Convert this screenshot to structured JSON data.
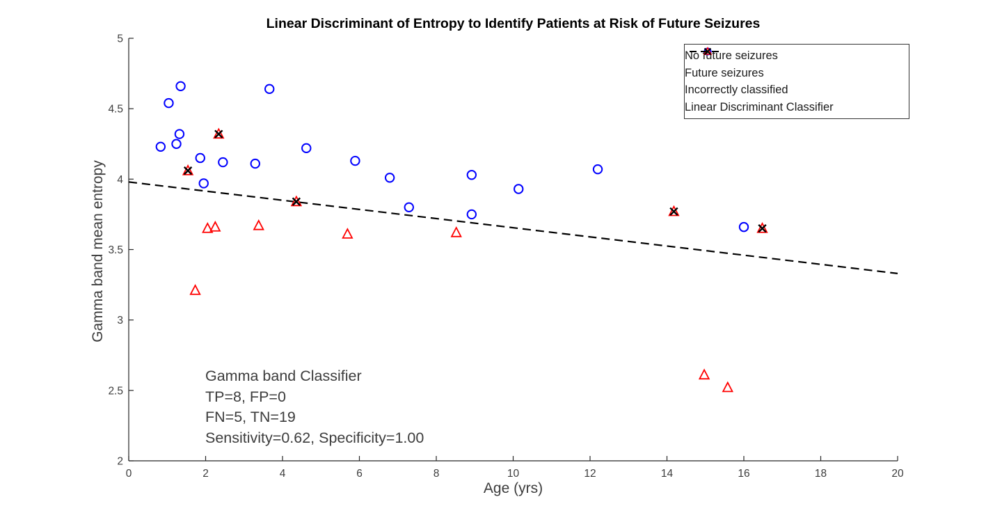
{
  "figure": {
    "background": "#ffffff"
  },
  "chart_data": {
    "type": "scatter",
    "title": "Linear Discriminant of Entropy to Identify Patients at Risk of Future Seizures",
    "xlabel": "Age (yrs)",
    "ylabel": "Gamma band mean entropy",
    "xlim": [
      0,
      20
    ],
    "ylim": [
      2,
      5
    ],
    "xticks": {
      "values": [
        0,
        2,
        4,
        6,
        8,
        10,
        12,
        14,
        16,
        18,
        20
      ],
      "labels": [
        "0",
        "2",
        "4",
        "6",
        "8",
        "10",
        "12",
        "14",
        "16",
        "18",
        "20"
      ]
    },
    "yticks": {
      "values": [
        2,
        2.5,
        3,
        3.5,
        4,
        4.5,
        5
      ],
      "labels": [
        "2",
        "2.5",
        "3",
        "3.5",
        "4",
        "4.5",
        "5"
      ]
    },
    "grid": false,
    "legend": {
      "position": "top-right",
      "border": true
    },
    "series": [
      {
        "name": "No future seizures",
        "marker": "circle",
        "color": "#0000ff",
        "points": [
          [
            0.83,
            4.23
          ],
          [
            1.04,
            4.54
          ],
          [
            1.24,
            4.25
          ],
          [
            1.32,
            4.32
          ],
          [
            1.35,
            4.66
          ],
          [
            1.86,
            4.15
          ],
          [
            1.95,
            3.97
          ],
          [
            2.45,
            4.12
          ],
          [
            3.29,
            4.11
          ],
          [
            3.66,
            4.64
          ],
          [
            4.62,
            4.22
          ],
          [
            5.89,
            4.13
          ],
          [
            6.79,
            4.01
          ],
          [
            7.29,
            3.8
          ],
          [
            8.92,
            4.03
          ],
          [
            8.92,
            3.75
          ],
          [
            10.14,
            3.93
          ],
          [
            12.2,
            4.07
          ],
          [
            16.0,
            3.66
          ]
        ]
      },
      {
        "name": "Future seizures",
        "marker": "triangle",
        "color": "#ff0000",
        "points": [
          [
            1.54,
            4.06
          ],
          [
            1.73,
            3.21
          ],
          [
            2.05,
            3.65
          ],
          [
            2.25,
            3.66
          ],
          [
            2.34,
            4.32
          ],
          [
            3.38,
            3.67
          ],
          [
            4.36,
            3.84
          ],
          [
            5.69,
            3.61
          ],
          [
            8.52,
            3.62
          ],
          [
            14.18,
            3.77
          ],
          [
            14.97,
            2.61
          ],
          [
            15.58,
            2.52
          ],
          [
            16.48,
            3.65
          ]
        ]
      },
      {
        "name": "Incorrectly classified",
        "marker": "x",
        "color": "#000000",
        "points": [
          [
            1.54,
            4.06
          ],
          [
            2.34,
            4.32
          ],
          [
            4.36,
            3.84
          ],
          [
            14.18,
            3.77
          ],
          [
            16.48,
            3.65
          ]
        ]
      },
      {
        "name": "Linear Discriminant Classifier",
        "marker": "dashed-line",
        "color": "#000000",
        "points": [
          [
            0,
            3.98
          ],
          [
            20,
            3.33
          ]
        ]
      }
    ],
    "annotation": {
      "lines": [
        "Gamma band Classifier",
        "TP=8, FP=0",
        "FN=5, TN=19",
        "Sensitivity=0.62, Specificity=1.00"
      ]
    },
    "colors": {
      "axis": "#262626",
      "tick_label": "#3c3c3c",
      "label": "#3c3c3c",
      "title": "#000000",
      "annotation": "#3c3c3c",
      "legend_border": "#333333",
      "legend_text": "#1a1a1a",
      "background": "#ffffff"
    }
  }
}
